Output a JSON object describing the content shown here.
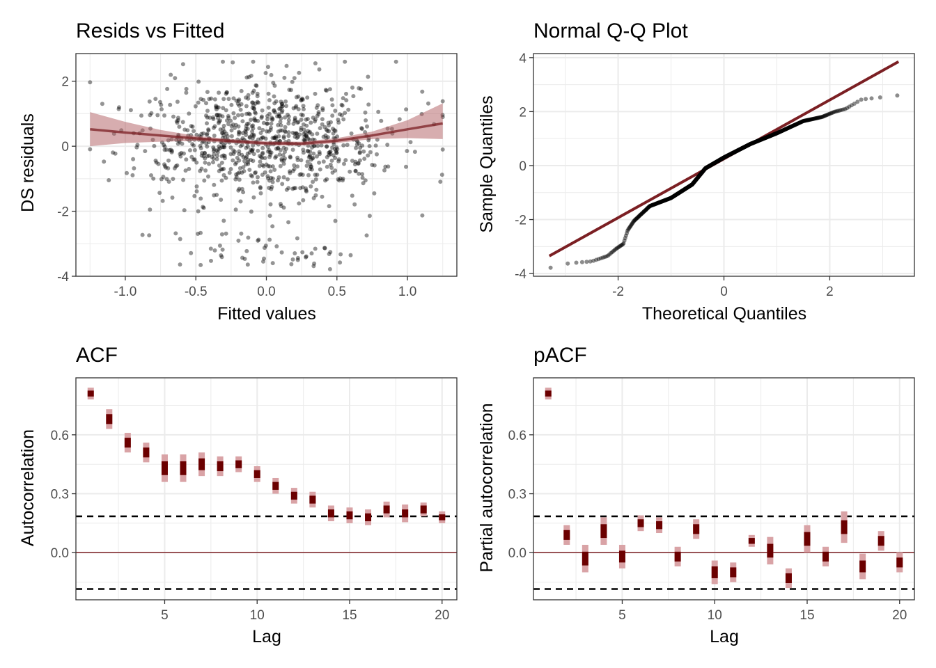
{
  "colors": {
    "accent": "#7b1f23",
    "acf_dark": "#6b0000",
    "acf_light": "#d9a3a6",
    "ribbon": "#b05c60",
    "points": "#000000",
    "grid": "#ebebeb"
  },
  "chart_data": [
    {
      "type": "scatter",
      "title": "Resids vs Fitted",
      "xlabel": "Fitted values",
      "ylabel": "DS residuals",
      "xlim": [
        -1.35,
        1.35
      ],
      "ylim": [
        -4.0,
        2.85
      ],
      "xticks": [
        -1.0,
        -0.5,
        0.0,
        0.5,
        1.0
      ],
      "xtick_labels": [
        "-1.0",
        "-0.5",
        "0.0",
        "0.5",
        "1.0"
      ],
      "yticks": [
        -4,
        -2,
        0,
        2
      ],
      "ytick_labels": [
        "-4",
        "-2",
        "0",
        "2"
      ],
      "n_points": 950,
      "smooth": {
        "x": [
          -1.25,
          -1.0,
          -0.75,
          -0.5,
          -0.25,
          0.0,
          0.25,
          0.5,
          0.75,
          1.0,
          1.25
        ],
        "y": [
          0.52,
          0.42,
          0.33,
          0.24,
          0.16,
          0.09,
          0.08,
          0.17,
          0.33,
          0.52,
          0.7
        ],
        "lower": [
          0.0,
          0.1,
          0.14,
          0.16,
          0.1,
          0.03,
          0.02,
          0.1,
          0.22,
          0.25,
          0.22
        ],
        "upper": [
          1.05,
          0.75,
          0.5,
          0.32,
          0.22,
          0.15,
          0.14,
          0.25,
          0.45,
          0.8,
          1.32
        ]
      },
      "grid": true,
      "legend": "none"
    },
    {
      "type": "scatter",
      "title": "Normal Q-Q Plot",
      "xlabel": "Theoretical Quantiles",
      "ylabel": "Sample Quantiles",
      "xlim": [
        -3.6,
        3.6
      ],
      "ylim": [
        -4.1,
        4.15
      ],
      "xticks": [
        -2,
        0,
        2
      ],
      "xtick_labels": [
        "-2",
        "0",
        "2"
      ],
      "yticks": [
        -4,
        -2,
        0,
        2,
        4
      ],
      "ytick_labels": [
        "-4",
        "-2",
        "0",
        "2",
        "4"
      ],
      "n_points": 950,
      "qq_profile": {
        "x": [
          -3.3,
          -3.05,
          -2.8,
          -2.5,
          -2.2,
          -2.05,
          -1.9,
          -1.82,
          -1.7,
          -1.4,
          -1.0,
          -0.6,
          -0.35,
          0.0,
          0.5,
          1.0,
          1.5,
          1.85,
          2.1,
          2.3,
          2.6,
          3.3
        ],
        "y": [
          -3.8,
          -3.65,
          -3.6,
          -3.55,
          -3.35,
          -3.1,
          -2.9,
          -2.4,
          -2.05,
          -1.5,
          -1.2,
          -0.7,
          -0.1,
          0.3,
          0.8,
          1.2,
          1.65,
          1.8,
          2.0,
          2.1,
          2.45,
          2.6
        ]
      },
      "reference_line": {
        "x": [
          -3.3,
          3.3
        ],
        "y": [
          -3.35,
          3.85
        ]
      },
      "grid": true,
      "legend": "none"
    },
    {
      "type": "bar",
      "title": "ACF",
      "xlabel": "Lag",
      "ylabel": "Autocorrelation",
      "xlim": [
        0.2,
        20.8
      ],
      "ylim": [
        -0.24,
        0.89
      ],
      "xticks": [
        5,
        10,
        15,
        20
      ],
      "xtick_labels": [
        "5",
        "10",
        "15",
        "20"
      ],
      "yticks": [
        0.0,
        0.3,
        0.6
      ],
      "ytick_labels": [
        "0.0",
        "0.3",
        "0.6"
      ],
      "x": [
        1,
        2,
        3,
        4,
        5,
        6,
        7,
        8,
        9,
        10,
        11,
        12,
        13,
        14,
        15,
        16,
        17,
        18,
        19,
        20
      ],
      "values": [
        0.81,
        0.68,
        0.56,
        0.51,
        0.43,
        0.43,
        0.45,
        0.44,
        0.45,
        0.4,
        0.34,
        0.29,
        0.27,
        0.2,
        0.19,
        0.18,
        0.22,
        0.2,
        0.22,
        0.18
      ],
      "inner_halfwidth": [
        0.015,
        0.025,
        0.025,
        0.025,
        0.035,
        0.035,
        0.03,
        0.025,
        0.02,
        0.02,
        0.02,
        0.02,
        0.02,
        0.02,
        0.02,
        0.02,
        0.02,
        0.02,
        0.02,
        0.015
      ],
      "outer_halfwidth": [
        0.03,
        0.05,
        0.05,
        0.05,
        0.07,
        0.07,
        0.06,
        0.05,
        0.04,
        0.04,
        0.04,
        0.04,
        0.04,
        0.04,
        0.04,
        0.04,
        0.04,
        0.045,
        0.035,
        0.03
      ],
      "ci_bounds": [
        0.185,
        -0.185
      ],
      "grid": true,
      "legend": "none"
    },
    {
      "type": "bar",
      "title": "pACF",
      "xlabel": "Lag",
      "ylabel": "Partial autocorrelation",
      "xlim": [
        0.2,
        20.8
      ],
      "ylim": [
        -0.24,
        0.89
      ],
      "xticks": [
        5,
        10,
        15,
        20
      ],
      "xtick_labels": [
        "5",
        "10",
        "15",
        "20"
      ],
      "yticks": [
        0.0,
        0.3,
        0.6
      ],
      "ytick_labels": [
        "0.0",
        "0.3",
        "0.6"
      ],
      "x": [
        1,
        2,
        3,
        4,
        5,
        6,
        7,
        8,
        9,
        10,
        11,
        12,
        13,
        14,
        15,
        16,
        17,
        18,
        19,
        20
      ],
      "values": [
        0.81,
        0.09,
        -0.03,
        0.11,
        -0.02,
        0.15,
        0.14,
        -0.02,
        0.12,
        -0.1,
        -0.1,
        0.06,
        0.01,
        -0.13,
        0.07,
        -0.02,
        0.13,
        -0.07,
        0.06,
        -0.05
      ],
      "inner_halfwidth": [
        0.015,
        0.025,
        0.035,
        0.035,
        0.03,
        0.02,
        0.02,
        0.025,
        0.025,
        0.03,
        0.025,
        0.015,
        0.035,
        0.025,
        0.035,
        0.025,
        0.035,
        0.03,
        0.025,
        0.025
      ],
      "outer_halfwidth": [
        0.03,
        0.05,
        0.07,
        0.07,
        0.06,
        0.04,
        0.04,
        0.05,
        0.05,
        0.06,
        0.05,
        0.03,
        0.07,
        0.05,
        0.07,
        0.05,
        0.08,
        0.065,
        0.05,
        0.05
      ],
      "ci_bounds": [
        0.185,
        -0.185
      ],
      "grid": true,
      "legend": "none"
    }
  ]
}
